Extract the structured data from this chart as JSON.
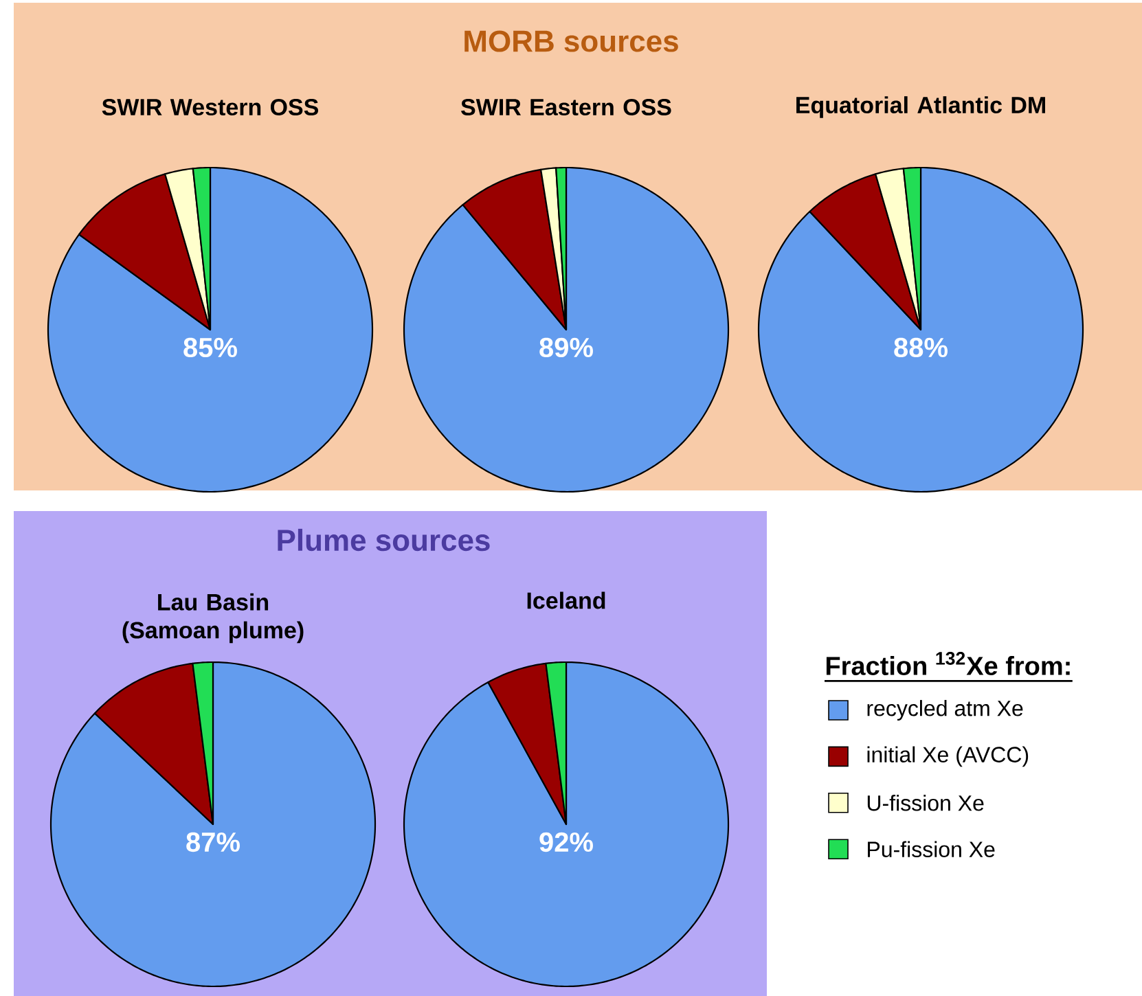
{
  "chart_data": [
    {
      "type": "pie",
      "title": "SWIR Western OSS",
      "annotations": [
        "MORB sources"
      ],
      "categories": [
        null,
        null,
        null,
        null
      ],
      "values": [
        85,
        10.5,
        2.8,
        1.7
      ],
      "colors": [
        "#639cee",
        "#990000",
        "#ffffcc",
        "#22dd55"
      ],
      "value_labels": [
        "85%",
        null,
        null,
        null
      ]
    },
    {
      "type": "pie",
      "title": "SWIR Eastern OSS",
      "categories": [
        null,
        null,
        null,
        null
      ],
      "values": [
        89,
        8.5,
        1.5,
        1
      ],
      "colors": [
        "#639cee",
        "#990000",
        "#ffffcc",
        "#22dd55"
      ],
      "value_labels": [
        "89%",
        null,
        null,
        null
      ]
    },
    {
      "type": "pie",
      "title": "Equatorial Atlantic DM",
      "categories": [
        null,
        null,
        null,
        null
      ],
      "values": [
        88,
        7.5,
        2.8,
        1.7
      ],
      "colors": [
        "#639cee",
        "#990000",
        "#ffffcc",
        "#22dd55"
      ],
      "value_labels": [
        "88%",
        null,
        null,
        null
      ]
    },
    {
      "type": "pie",
      "title": "Lau Basin (Samoan plume)",
      "annotations": [
        "Plume sources"
      ],
      "categories": [
        null,
        null,
        null,
        null
      ],
      "values": [
        87,
        11,
        0,
        2
      ],
      "colors": [
        "#639cee",
        "#990000",
        "#ffffcc",
        "#22dd55"
      ],
      "value_labels": [
        "87%",
        null,
        null,
        null
      ]
    },
    {
      "type": "pie",
      "title": "Iceland",
      "legend": "right",
      "legend_title": "Fraction $^{132}$Xe from:",
      "categories": [
        "recycled atm Xe",
        "initial Xe (AVCC)",
        "U-fission Xe",
        "Pu-fission Xe"
      ],
      "values": [
        92,
        6,
        0,
        2
      ],
      "colors": [
        "#639cee",
        "#990000",
        "#ffffcc",
        "#22dd55"
      ],
      "value_labels": [
        "92%",
        null,
        null,
        null
      ]
    }
  ]
}
